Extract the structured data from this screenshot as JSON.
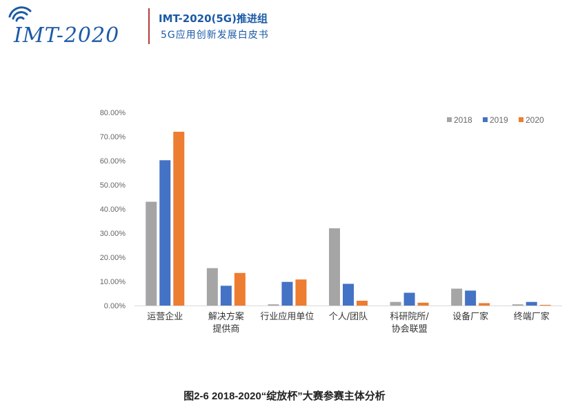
{
  "header": {
    "logo_text": "IMT-2020",
    "org_title": "IMT-2020(5G)推进组",
    "org_subtitle": "5G应用创新发展白皮书"
  },
  "colors": {
    "brand": "#1b5aa6",
    "divider": "#b33a3a",
    "series_2018": "#a5a5a5",
    "series_2019": "#4472c4",
    "series_2020": "#ed7d31"
  },
  "caption": "图2-6  2018-2020“绽放杯”大赛参赛主体分析",
  "chart_data": {
    "type": "bar",
    "categories": [
      [
        "运营企业"
      ],
      [
        "解决方案",
        "提供商"
      ],
      [
        "行业应用单位"
      ],
      [
        "个人/团队"
      ],
      [
        "科研院所/",
        "协会联盟"
      ],
      [
        "设备厂家"
      ],
      [
        "终端厂家"
      ]
    ],
    "series": [
      {
        "name": "2018",
        "color": "#a5a5a5",
        "values": [
          43.0,
          15.5,
          0.5,
          32.0,
          1.5,
          7.0,
          0.5
        ]
      },
      {
        "name": "2019",
        "color": "#4472c4",
        "values": [
          60.2,
          8.2,
          9.8,
          9.0,
          5.3,
          6.2,
          1.5
        ]
      },
      {
        "name": "2020",
        "color": "#ed7d31",
        "values": [
          72.0,
          13.5,
          10.8,
          2.0,
          1.2,
          1.0,
          0.3
        ]
      }
    ],
    "yticks": [
      "0.00%",
      "10.00%",
      "20.00%",
      "30.00%",
      "40.00%",
      "50.00%",
      "60.00%",
      "70.00%",
      "80.00%"
    ],
    "ylim": [
      0,
      80
    ],
    "legend_position": "top-right",
    "grid": false
  }
}
